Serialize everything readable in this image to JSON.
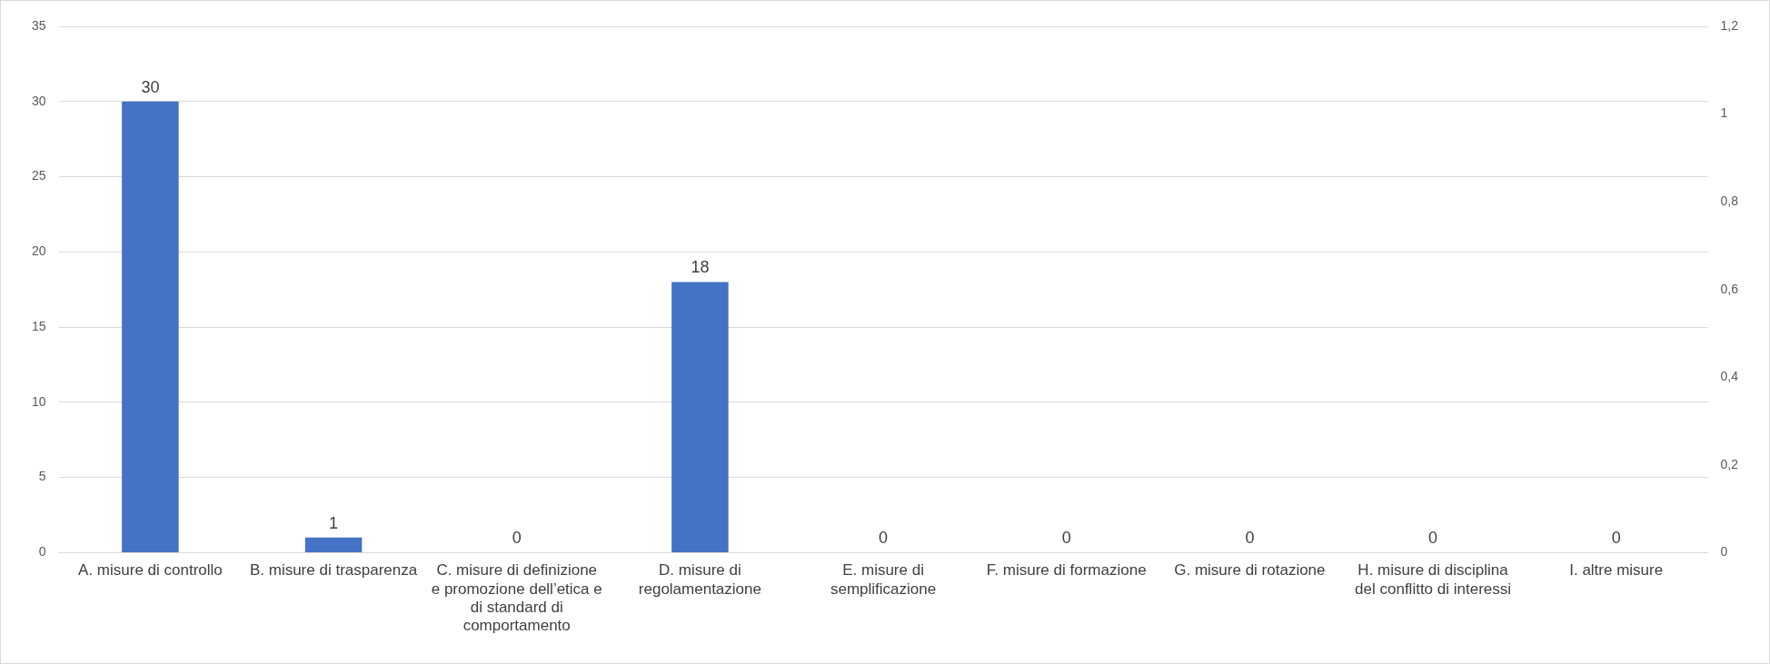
{
  "chart_data": {
    "type": "bar",
    "categories": [
      "A. misure di controllo",
      "B. misure di trasparenza",
      "C. misure di definizione e promozione dell’etica e di standard di comportamento",
      "D. misure di regolamentazione",
      "E. misure di semplificazione",
      "F. misure di formazione",
      "G. misure di rotazione",
      "H. misure di disciplina del conflitto di interessi",
      "I. altre misure"
    ],
    "values": [
      30,
      1,
      0,
      18,
      0,
      0,
      0,
      0,
      0
    ],
    "color": "#4472c4",
    "ylim": [
      0,
      35
    ],
    "yticks": [
      0,
      5,
      10,
      15,
      20,
      25,
      30,
      35
    ],
    "y2lim": [
      0,
      1.2
    ],
    "y2ticks": [
      {
        "value": 0,
        "label": "0"
      },
      {
        "value": 0.2,
        "label": "0,2"
      },
      {
        "value": 0.4,
        "label": "0,4"
      },
      {
        "value": 0.6,
        "label": "0,6"
      },
      {
        "value": 0.8,
        "label": "0,8"
      },
      {
        "value": 1,
        "label": "1"
      },
      {
        "value": 1.2,
        "label": "1,2"
      }
    ],
    "grid": "y",
    "data_labels": true,
    "legend": false
  }
}
